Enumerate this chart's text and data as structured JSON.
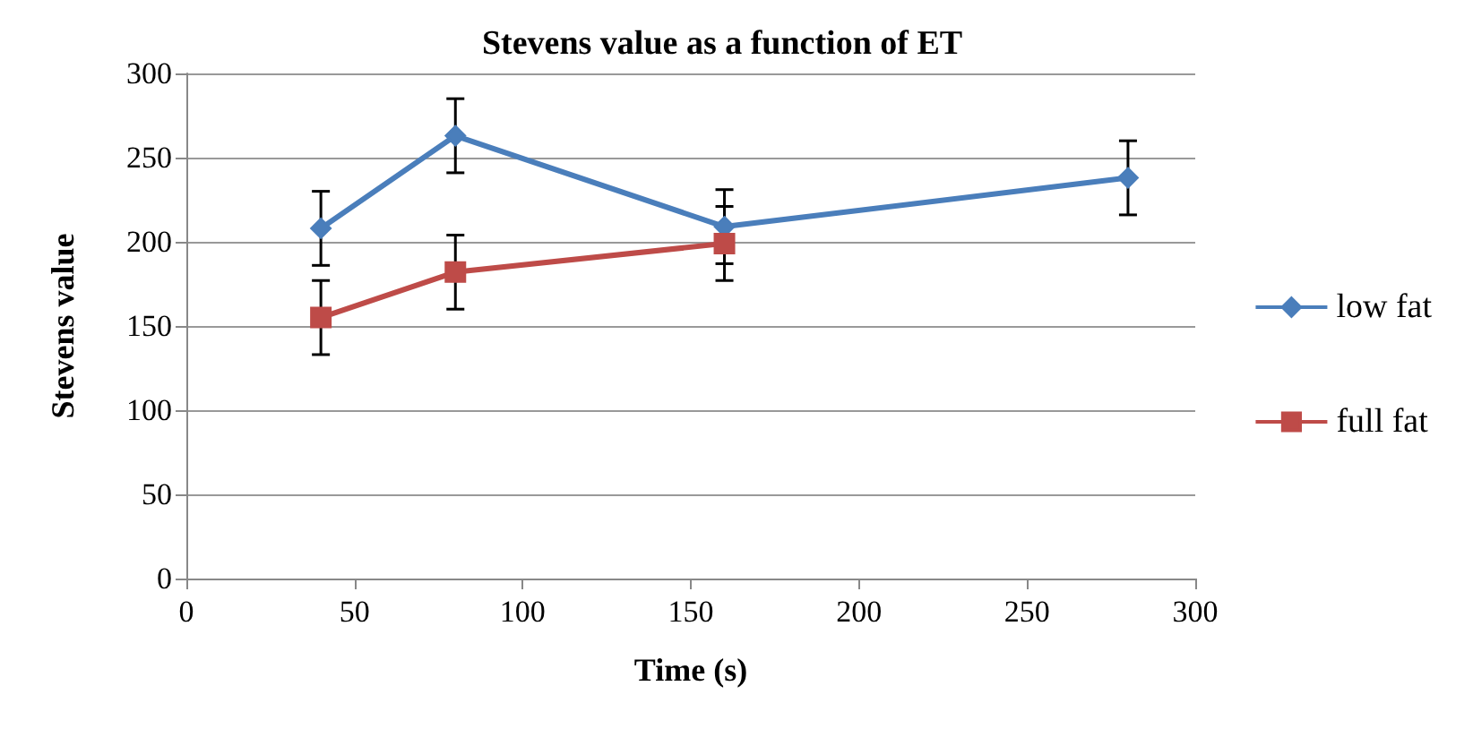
{
  "chart_data": {
    "type": "line",
    "title": "Stevens value as a function of ET",
    "xlabel": "Time (s)",
    "ylabel": "Stevens value",
    "xlim": [
      0,
      300
    ],
    "xticks": [
      0,
      50,
      100,
      150,
      200,
      250,
      300
    ],
    "ylim": [
      0,
      300
    ],
    "yticks": [
      0,
      50,
      100,
      150,
      200,
      250,
      300
    ],
    "grid": "y",
    "legend": "right",
    "series": [
      {
        "name": "low fat",
        "color": "#4a7ebb",
        "marker": "diamond",
        "x": [
          40,
          80,
          160,
          280
        ],
        "values": [
          208,
          263,
          209,
          238
        ],
        "errors": [
          22,
          22,
          22,
          22
        ]
      },
      {
        "name": "full fat",
        "color": "#be4b48",
        "marker": "square",
        "x": [
          40,
          80,
          160
        ],
        "values": [
          155,
          182,
          199
        ],
        "errors": [
          22,
          22,
          22
        ]
      }
    ]
  }
}
